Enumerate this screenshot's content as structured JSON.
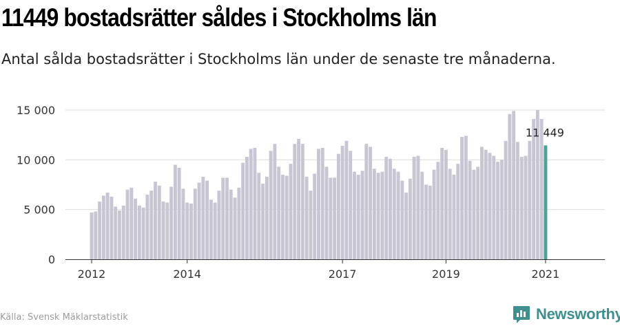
{
  "header": {
    "title": "11449 bostadsrätter såldes i Stockholms län",
    "subtitle": "Antal sålda bostadsrätter i Stockholms län under de senaste tre månaderna."
  },
  "footer": {
    "source": "Källa: Svensk Mäklarstatistik",
    "brand": "Newsworthy"
  },
  "colors": {
    "bar": "#c8c6d2",
    "highlight": "#4aa394",
    "grid": "#dddddd",
    "brand": "#3f8f8e"
  },
  "chart_data": {
    "type": "bar",
    "ylim": [
      0,
      15000
    ],
    "yticks": [
      "0",
      "5 000",
      "10 000",
      "15 000"
    ],
    "xtick_labels": [
      "2012",
      "2014",
      "2017",
      "2019",
      "2021"
    ],
    "xtick_indices": [
      0,
      24,
      63,
      89,
      114
    ],
    "values": [
      4700,
      4800,
      5800,
      6400,
      6700,
      6300,
      5300,
      4900,
      5400,
      7000,
      7200,
      6100,
      5400,
      5200,
      6500,
      6900,
      7800,
      7400,
      5800,
      5700,
      7300,
      9500,
      9200,
      7100,
      5700,
      5600,
      7100,
      7700,
      8300,
      7900,
      6000,
      5700,
      6900,
      8200,
      8200,
      7000,
      6200,
      7200,
      9700,
      10300,
      11100,
      11200,
      8700,
      7600,
      8300,
      10900,
      11600,
      9300,
      8500,
      8400,
      9600,
      11600,
      12100,
      11600,
      8300,
      6900,
      8600,
      11100,
      11200,
      9300,
      8200,
      8200,
      10600,
      11400,
      11900,
      10900,
      8800,
      8500,
      8900,
      11600,
      11300,
      9100,
      8700,
      8800,
      10300,
      10100,
      9100,
      8800,
      7900,
      6700,
      8100,
      10300,
      10400,
      8800,
      7500,
      7400,
      9000,
      9800,
      11200,
      11000,
      9100,
      8500,
      9600,
      12300,
      12400,
      9900,
      9000,
      9300,
      11300,
      11000,
      10700,
      10400,
      9800,
      10000,
      11900,
      14600,
      14900,
      11800,
      10300,
      10400,
      11900,
      14100,
      15000,
      14100,
      11449
    ],
    "highlight_index": 114,
    "highlight_label": "11 449"
  }
}
